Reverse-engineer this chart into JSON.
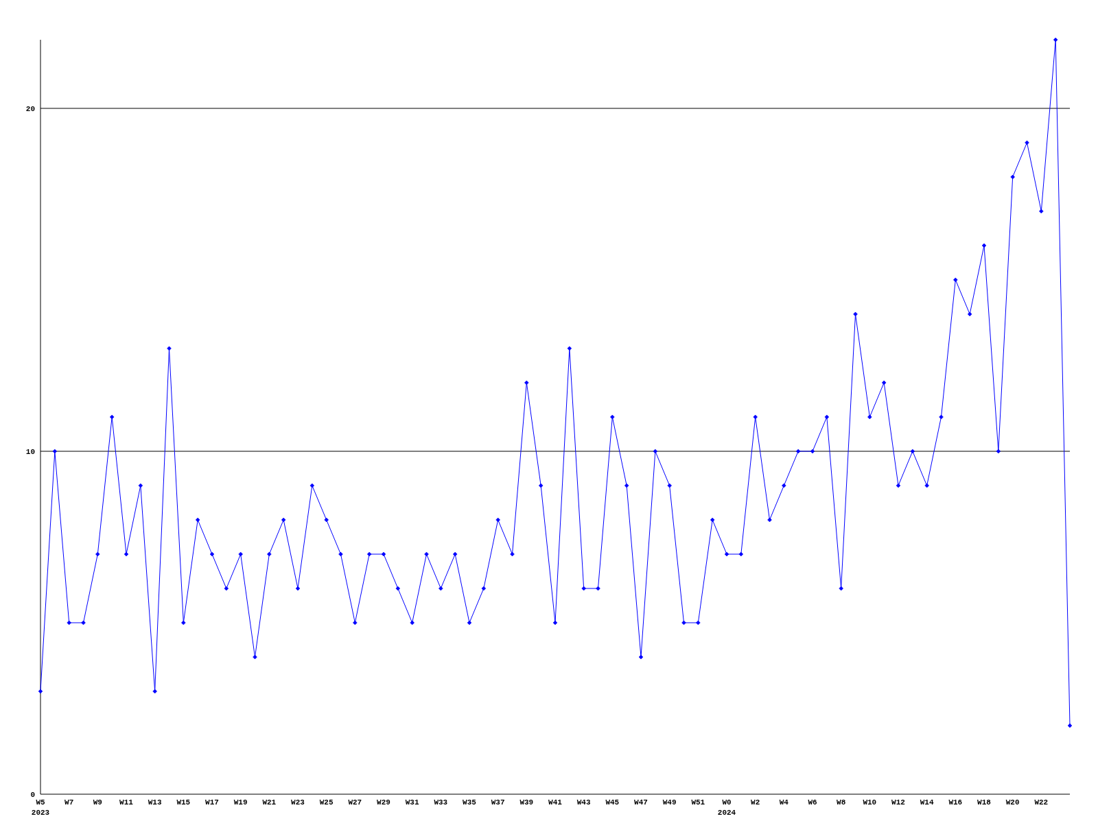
{
  "chart_data": {
    "type": "line",
    "categories": [
      "W5\n2023",
      null,
      "W7",
      null,
      "W9",
      null,
      "W11",
      null,
      "W13",
      null,
      "W15",
      null,
      "W17",
      null,
      "W19",
      null,
      "W21",
      null,
      "W23",
      null,
      "W25",
      null,
      "W27",
      null,
      "W29",
      null,
      "W31",
      null,
      "W33",
      null,
      "W35",
      null,
      "W37",
      null,
      "W39",
      null,
      "W41",
      null,
      "W43",
      null,
      "W45",
      null,
      "W47",
      null,
      "W49",
      null,
      "W51",
      null,
      "W0\n2024",
      null,
      "W2",
      null,
      "W4",
      null,
      "W6",
      null,
      "W8",
      null,
      "W10",
      null,
      "W12",
      null,
      "W14",
      null,
      "W16",
      null,
      "W18",
      null,
      "W20",
      null,
      "W22",
      null,
      null
    ],
    "series": [
      {
        "color": "#0000ff",
        "values": [
          3,
          10,
          5,
          5,
          7,
          11,
          7,
          9,
          3,
          13,
          5,
          8,
          7,
          6,
          7,
          4,
          7,
          8,
          6,
          9,
          8,
          7,
          5,
          7,
          7,
          6,
          5,
          7,
          6,
          7,
          5,
          6,
          8,
          7,
          12,
          9,
          5,
          13,
          6,
          6,
          11,
          9,
          4,
          10,
          9,
          5,
          5,
          8,
          7,
          7,
          11,
          8,
          9,
          10,
          10,
          11,
          6,
          14,
          11,
          12,
          9,
          10,
          9,
          11,
          15,
          14,
          16,
          10,
          18,
          19,
          17,
          22,
          2
        ]
      }
    ],
    "ylim": [
      0,
      22
    ],
    "yticks": [
      0,
      10,
      20
    ],
    "grid": "y",
    "marker": "diamond",
    "line_style": "solid"
  }
}
